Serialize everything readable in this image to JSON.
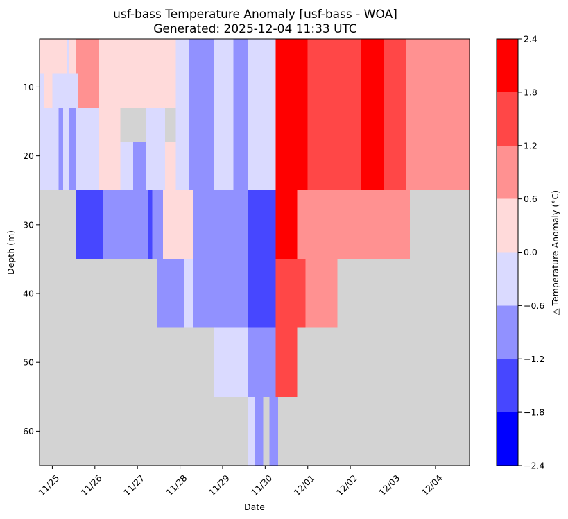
{
  "chart_data": {
    "type": "heatmap",
    "title": "usf-bass Temperature Anomaly [usf-bass - WOA]",
    "subtitle": "Generated: 2025-12-04 11:33 UTC",
    "xlabel": "Date",
    "ylabel": "Depth (m)",
    "colorbar_label": "△ Temperature Anomaly (°C)",
    "x_ticks": [
      "11/25",
      "11/26",
      "11/27",
      "11/28",
      "11/29",
      "11/30",
      "12/01",
      "12/02",
      "12/03",
      "12/04"
    ],
    "y_ticks": [
      10,
      20,
      30,
      40,
      50,
      60
    ],
    "ylim": [
      65,
      3
    ],
    "xlim": [
      -0.3,
      9.8
    ],
    "colorbar_ticks": [
      2.4,
      1.8,
      1.2,
      0.6,
      0.0,
      -0.6,
      -1.2,
      -1.8,
      -2.4
    ],
    "colorbar_levels": [
      {
        "range": [
          -2.4,
          -1.8
        ],
        "color": "#0000ff"
      },
      {
        "range": [
          -1.8,
          -1.2
        ],
        "color": "#4747ff"
      },
      {
        "range": [
          -1.2,
          -0.6
        ],
        "color": "#9191ff"
      },
      {
        "range": [
          -0.6,
          0.0
        ],
        "color": "#dadaff"
      },
      {
        "range": [
          0.0,
          0.6
        ],
        "color": "#ffdada"
      },
      {
        "range": [
          0.6,
          1.2
        ],
        "color": "#ff9191"
      },
      {
        "range": [
          1.2,
          1.8
        ],
        "color": "#ff4747"
      },
      {
        "range": [
          1.8,
          2.4
        ],
        "color": "#ff0000"
      }
    ],
    "nodata_color": "#d3d3d3",
    "cells": [
      {
        "x0": -0.3,
        "x1": 9.8,
        "y0": 3,
        "y1": 65,
        "level": -1
      },
      {
        "x0": -0.3,
        "x1": 0.35,
        "y0": 3,
        "y1": 8,
        "level": 4
      },
      {
        "x0": 0.35,
        "x1": 0.4,
        "y0": 3,
        "y1": 8,
        "level": 3
      },
      {
        "x0": 0.4,
        "x1": 0.55,
        "y0": 3,
        "y1": 8,
        "level": 4
      },
      {
        "x0": 0.55,
        "x1": 1.1,
        "y0": 3,
        "y1": 13,
        "level": 5
      },
      {
        "x0": 1.1,
        "x1": 2.9,
        "y0": 3,
        "y1": 13,
        "level": 4
      },
      {
        "x0": 2.9,
        "x1": 3.2,
        "y0": 3,
        "y1": 25,
        "level": 3
      },
      {
        "x0": 3.2,
        "x1": 3.8,
        "y0": 3,
        "y1": 25,
        "level": 2
      },
      {
        "x0": 3.8,
        "x1": 4.25,
        "y0": 3,
        "y1": 25,
        "level": 3
      },
      {
        "x0": 4.25,
        "x1": 4.6,
        "y0": 3,
        "y1": 25,
        "level": 2
      },
      {
        "x0": 4.6,
        "x1": 5.25,
        "y0": 3,
        "y1": 25,
        "level": 3
      },
      {
        "x0": 5.25,
        "x1": 6.0,
        "y0": 3,
        "y1": 25,
        "level": 7
      },
      {
        "x0": 6.0,
        "x1": 7.25,
        "y0": 3,
        "y1": 25,
        "level": 6
      },
      {
        "x0": 7.25,
        "x1": 7.8,
        "y0": 3,
        "y1": 25,
        "level": 7
      },
      {
        "x0": 7.8,
        "x1": 8.3,
        "y0": 3,
        "y1": 25,
        "level": 6
      },
      {
        "x0": 8.3,
        "x1": 9.8,
        "y0": 3,
        "y1": 25,
        "level": 5
      },
      {
        "x0": -0.3,
        "x1": 0.6,
        "y0": 8,
        "y1": 25,
        "level": 3
      },
      {
        "x0": -0.2,
        "x1": 0.0,
        "y0": 8,
        "y1": 13,
        "level": 4
      },
      {
        "x0": 0.15,
        "x1": 0.25,
        "y0": 13,
        "y1": 25,
        "level": 2
      },
      {
        "x0": 0.4,
        "x1": 0.55,
        "y0": 13,
        "y1": 25,
        "level": 2
      },
      {
        "x0": 0.6,
        "x1": 1.1,
        "y0": 13,
        "y1": 25,
        "level": 3
      },
      {
        "x0": 1.1,
        "x1": 1.6,
        "y0": 13,
        "y1": 25,
        "level": 4
      },
      {
        "x0": 1.6,
        "x1": 1.9,
        "y0": 18,
        "y1": 25,
        "level": 3
      },
      {
        "x0": 1.9,
        "x1": 2.2,
        "y0": 18,
        "y1": 25,
        "level": 2
      },
      {
        "x0": 2.2,
        "x1": 2.65,
        "y0": 13,
        "y1": 25,
        "level": 3
      },
      {
        "x0": 2.65,
        "x1": 2.9,
        "y0": 18,
        "y1": 25,
        "level": 4
      },
      {
        "x0": 0.55,
        "x1": 1.2,
        "y0": 25,
        "y1": 35,
        "level": 1
      },
      {
        "x0": 1.2,
        "x1": 2.25,
        "y0": 25,
        "y1": 35,
        "level": 2
      },
      {
        "x0": 2.25,
        "x1": 2.35,
        "y0": 25,
        "y1": 35,
        "level": 1
      },
      {
        "x0": 2.35,
        "x1": 2.6,
        "y0": 25,
        "y1": 35,
        "level": 2
      },
      {
        "x0": 2.6,
        "x1": 3.3,
        "y0": 25,
        "y1": 35,
        "level": 4
      },
      {
        "x0": 3.3,
        "x1": 4.6,
        "y0": 25,
        "y1": 35,
        "level": 2
      },
      {
        "x0": 4.6,
        "x1": 5.25,
        "y0": 25,
        "y1": 45,
        "level": 1
      },
      {
        "x0": 5.25,
        "x1": 5.75,
        "y0": 25,
        "y1": 35,
        "level": 7
      },
      {
        "x0": 5.75,
        "x1": 7.75,
        "y0": 25,
        "y1": 35,
        "level": 5
      },
      {
        "x0": 7.75,
        "x1": 8.4,
        "y0": 25,
        "y1": 35,
        "level": 5
      },
      {
        "x0": 2.45,
        "x1": 3.1,
        "y0": 35,
        "y1": 45,
        "level": 2
      },
      {
        "x0": 3.1,
        "x1": 3.3,
        "y0": 35,
        "y1": 45,
        "level": 3
      },
      {
        "x0": 3.3,
        "x1": 4.6,
        "y0": 35,
        "y1": 45,
        "level": 2
      },
      {
        "x0": 5.25,
        "x1": 5.95,
        "y0": 35,
        "y1": 45,
        "level": 6
      },
      {
        "x0": 5.95,
        "x1": 6.7,
        "y0": 35,
        "y1": 45,
        "level": 5
      },
      {
        "x0": 3.8,
        "x1": 4.6,
        "y0": 45,
        "y1": 55,
        "level": 3
      },
      {
        "x0": 4.6,
        "x1": 5.25,
        "y0": 45,
        "y1": 55,
        "level": 2
      },
      {
        "x0": 5.25,
        "x1": 5.75,
        "y0": 45,
        "y1": 55,
        "level": 6
      },
      {
        "x0": 4.6,
        "x1": 4.75,
        "y0": 55,
        "y1": 65,
        "level": 3
      },
      {
        "x0": 4.75,
        "x1": 4.95,
        "y0": 55,
        "y1": 65,
        "level": 2
      },
      {
        "x0": 5.1,
        "x1": 5.3,
        "y0": 55,
        "y1": 65,
        "level": 2
      }
    ]
  }
}
